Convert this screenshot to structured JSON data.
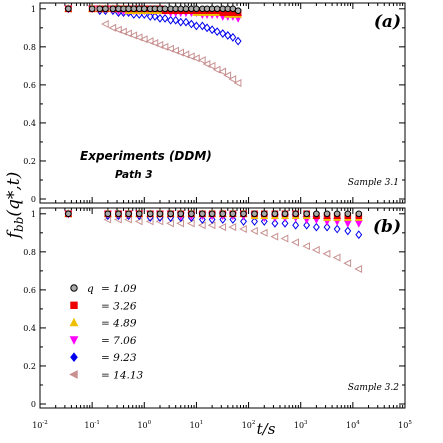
{
  "chart_data": {
    "type": "scatter",
    "ylabel": "f_bb(q*,t)",
    "xlabel": "t/s",
    "x_scale": "log",
    "x_ticks": [
      "10^-2",
      "10^-1",
      "10^0",
      "10^1",
      "10^2",
      "10^3",
      "10^4",
      "10^5"
    ],
    "legend_q_symbol": "q",
    "panels": [
      {
        "letter": "(a)",
        "sample": "Sample 3.1",
        "annotation_line1": "Experiments (DDM)",
        "annotation_line2": "Path 3",
        "xlim": [
          0.01,
          100000
        ],
        "ylim": [
          0,
          1.02
        ],
        "y_ticks": [
          "0",
          "0.2",
          "0.4",
          "0.6",
          "0.8",
          "1"
        ],
        "series": [
          {
            "name": "1.09",
            "marker": "circle",
            "color": "#000000",
            "fill": "#aaaaaa",
            "x": [
              0.035,
              0.1,
              0.14,
              0.18,
              0.25,
              0.32,
              0.4,
              0.5,
              0.63,
              0.8,
              1.0,
              1.3,
              1.6,
              2.0,
              2.5,
              3.2,
              4.0,
              5.0,
              6.3,
              8,
              10,
              13,
              16,
              20,
              25,
              32,
              40,
              50,
              63
            ],
            "y": [
              1.0,
              1.0,
              1.0,
              1.0,
              1.0,
              1.0,
              1.0,
              1.0,
              1.0,
              1.0,
              1.0,
              1.0,
              1.0,
              1.0,
              1.0,
              1.0,
              1.0,
              1.0,
              1.0,
              1.0,
              1.0,
              1.0,
              1.0,
              1.0,
              1.0,
              1.0,
              1.0,
              1.0,
              0.99
            ]
          },
          {
            "name": "3.26",
            "marker": "square",
            "color": "#ee0000",
            "fill": "#ee0000",
            "x": [
              0.035,
              0.1,
              0.14,
              0.18,
              0.25,
              0.32,
              0.4,
              0.5,
              0.63,
              0.8,
              1.0,
              1.3,
              1.6,
              2.0,
              2.5,
              3.2,
              4.0,
              5.0,
              6.3,
              8,
              10,
              13,
              16,
              20,
              25,
              32,
              40,
              50,
              63
            ],
            "y": [
              1.0,
              1.0,
              1.0,
              1.0,
              1.0,
              1.0,
              1.0,
              1.0,
              1.0,
              1.0,
              1.0,
              1.0,
              1.0,
              1.0,
              0.99,
              0.99,
              0.99,
              0.99,
              0.99,
              0.99,
              0.99,
              0.99,
              0.99,
              0.99,
              0.99,
              0.98,
              0.98,
              0.98,
              0.98
            ]
          },
          {
            "name": "4.89",
            "marker": "triangle-up",
            "color": "#f0c000",
            "fill": "#f0c000",
            "x": [
              0.035,
              0.1,
              0.14,
              0.18,
              0.25,
              0.32,
              0.4,
              0.5,
              0.63,
              0.8,
              1.0,
              1.3,
              1.6,
              2.0,
              2.5,
              3.2,
              4.0,
              5.0,
              6.3,
              8,
              10,
              13,
              16,
              20,
              25,
              32,
              40,
              50,
              63
            ],
            "y": [
              1.0,
              1.0,
              1.0,
              1.0,
              1.0,
              1.0,
              1.0,
              0.99,
              0.99,
              0.99,
              0.99,
              0.99,
              0.99,
              0.99,
              0.99,
              0.99,
              0.99,
              0.99,
              0.99,
              0.99,
              0.98,
              0.98,
              0.98,
              0.98,
              0.98,
              0.98,
              0.97,
              0.97,
              0.97
            ]
          },
          {
            "name": "7.06",
            "marker": "triangle-down",
            "color": "#ff00ff",
            "fill": "#ff00ff",
            "x": [
              0.035,
              0.1,
              0.14,
              0.18,
              0.25,
              0.32,
              0.4,
              0.5,
              0.63,
              0.8,
              1.0,
              1.3,
              1.6,
              2.0,
              2.5,
              3.2,
              4.0,
              5.0,
              6.3,
              8,
              10,
              13,
              16,
              20,
              25,
              32,
              40,
              50,
              63
            ],
            "y": [
              1.0,
              1.0,
              1.0,
              1.0,
              1.0,
              0.99,
              0.99,
              0.99,
              0.99,
              0.99,
              0.99,
              0.99,
              0.99,
              0.99,
              0.99,
              0.98,
              0.98,
              0.98,
              0.98,
              0.98,
              0.98,
              0.97,
              0.97,
              0.97,
              0.97,
              0.96,
              0.96,
              0.96,
              0.95
            ]
          },
          {
            "name": "9.23",
            "marker": "diamond",
            "color": "#0000ee",
            "fill": "none",
            "x": [
              0.035,
              0.14,
              0.18,
              0.25,
              0.32,
              0.4,
              0.5,
              0.63,
              0.8,
              1.0,
              1.3,
              1.6,
              2.0,
              2.5,
              3.2,
              4.0,
              5.0,
              6.3,
              8,
              10,
              13,
              16,
              20,
              25,
              32,
              40,
              50,
              63
            ],
            "y": [
              1.0,
              0.99,
              0.99,
              0.99,
              0.98,
              0.98,
              0.98,
              0.97,
              0.97,
              0.97,
              0.96,
              0.96,
              0.95,
              0.95,
              0.94,
              0.94,
              0.93,
              0.93,
              0.92,
              0.91,
              0.91,
              0.9,
              0.89,
              0.88,
              0.87,
              0.86,
              0.85,
              0.83
            ]
          },
          {
            "name": "14.13",
            "marker": "triangle-left",
            "color": "#c89090",
            "fill": "none",
            "x": [
              0.035,
              0.18,
              0.25,
              0.32,
              0.4,
              0.5,
              0.63,
              0.8,
              1.0,
              1.3,
              1.6,
              2.0,
              2.5,
              3.2,
              4.0,
              5.0,
              6.3,
              8,
              10,
              13,
              16,
              20,
              25,
              32,
              40,
              50,
              63
            ],
            "y": [
              1.0,
              0.92,
              0.9,
              0.89,
              0.88,
              0.87,
              0.86,
              0.85,
              0.84,
              0.83,
              0.82,
              0.81,
              0.8,
              0.79,
              0.78,
              0.77,
              0.76,
              0.75,
              0.74,
              0.73,
              0.71,
              0.7,
              0.68,
              0.67,
              0.65,
              0.63,
              0.61
            ]
          }
        ]
      },
      {
        "letter": "(b)",
        "sample": "Sample 3.2",
        "xlim": [
          0.01,
          100000
        ],
        "ylim": [
          0,
          1.02
        ],
        "y_ticks": [
          "0",
          "0.2",
          "0.4",
          "0.6",
          "0.8",
          "1"
        ],
        "series": [
          {
            "name": "1.09",
            "marker": "circle",
            "color": "#000000",
            "fill": "#aaaaaa",
            "x": [
              0.035,
              0.2,
              0.32,
              0.5,
              0.8,
              1.3,
              2.0,
              3.2,
              5.0,
              8,
              13,
              20,
              32,
              50,
              80,
              130,
              200,
              320,
              500,
              800,
              1300,
              2000,
              3200,
              5000,
              8000,
              13000
            ],
            "y": [
              1.0,
              1.0,
              1.0,
              1.0,
              1.0,
              1.0,
              1.0,
              1.0,
              1.0,
              1.0,
              1.0,
              1.0,
              1.0,
              1.0,
              1.0,
              1.0,
              1.0,
              1.0,
              1.0,
              1.0,
              1.0,
              1.0,
              1.0,
              1.0,
              1.0,
              1.0
            ]
          },
          {
            "name": "3.26",
            "marker": "square",
            "color": "#ee0000",
            "fill": "#ee0000",
            "x": [
              0.035,
              0.2,
              0.32,
              0.5,
              0.8,
              1.3,
              2.0,
              3.2,
              5.0,
              8,
              13,
              20,
              32,
              50,
              80,
              130,
              200,
              320,
              500,
              800,
              1300,
              2000,
              3200,
              5000,
              8000,
              13000
            ],
            "y": [
              1.0,
              1.0,
              1.0,
              1.0,
              1.0,
              1.0,
              1.0,
              1.0,
              1.0,
              1.0,
              1.0,
              1.0,
              1.0,
              1.0,
              1.0,
              1.0,
              1.0,
              1.0,
              1.0,
              1.0,
              1.0,
              0.99,
              0.99,
              0.99,
              0.99,
              0.99
            ]
          },
          {
            "name": "4.89",
            "marker": "triangle-up",
            "color": "#f0c000",
            "fill": "#f0c000",
            "x": [
              0.035,
              0.2,
              0.32,
              0.5,
              0.8,
              1.3,
              2.0,
              3.2,
              5.0,
              8,
              13,
              20,
              32,
              50,
              80,
              130,
              200,
              320,
              500,
              800,
              1300,
              2000,
              3200,
              5000,
              8000,
              13000
            ],
            "y": [
              1.0,
              1.0,
              1.0,
              1.0,
              1.0,
              1.0,
              1.0,
              1.0,
              1.0,
              1.0,
              1.0,
              1.0,
              1.0,
              1.0,
              1.0,
              0.99,
              0.99,
              0.99,
              0.99,
              0.99,
              0.99,
              0.99,
              0.98,
              0.98,
              0.98,
              0.98
            ]
          },
          {
            "name": "7.06",
            "marker": "triangle-down",
            "color": "#ff00ff",
            "fill": "#ff00ff",
            "x": [
              0.035,
              0.2,
              0.32,
              0.5,
              0.8,
              1.3,
              2.0,
              3.2,
              5.0,
              8,
              13,
              20,
              32,
              50,
              80,
              130,
              200,
              320,
              500,
              800,
              1300,
              2000,
              3200,
              5000,
              8000,
              13000
            ],
            "y": [
              1.0,
              1.0,
              1.0,
              1.0,
              1.0,
              1.0,
              1.0,
              1.0,
              0.99,
              0.99,
              0.99,
              0.99,
              0.99,
              0.99,
              0.99,
              0.99,
              0.98,
              0.98,
              0.98,
              0.98,
              0.97,
              0.97,
              0.96,
              0.96,
              0.95,
              0.95
            ]
          },
          {
            "name": "9.23",
            "marker": "diamond",
            "color": "#0000ee",
            "fill": "none",
            "x": [
              0.035,
              0.2,
              0.32,
              0.5,
              0.8,
              1.3,
              2.0,
              3.2,
              5.0,
              8,
              13,
              20,
              32,
              50,
              80,
              130,
              200,
              320,
              500,
              800,
              1300,
              2000,
              3200,
              5000,
              8000,
              13000
            ],
            "y": [
              1.0,
              0.99,
              0.99,
              0.99,
              0.99,
              0.98,
              0.98,
              0.98,
              0.98,
              0.98,
              0.97,
              0.97,
              0.97,
              0.97,
              0.96,
              0.96,
              0.96,
              0.95,
              0.95,
              0.94,
              0.94,
              0.93,
              0.93,
              0.92,
              0.91,
              0.89
            ]
          },
          {
            "name": "14.13",
            "marker": "triangle-left",
            "color": "#c89090",
            "fill": "none",
            "x": [
              0.035,
              0.2,
              0.32,
              0.5,
              0.8,
              1.3,
              2.0,
              3.2,
              5.0,
              8,
              13,
              20,
              32,
              50,
              80,
              130,
              200,
              320,
              500,
              800,
              1300,
              2000,
              3200,
              5000,
              8000,
              13000
            ],
            "y": [
              1.0,
              0.97,
              0.97,
              0.97,
              0.96,
              0.96,
              0.96,
              0.95,
              0.95,
              0.95,
              0.94,
              0.94,
              0.93,
              0.93,
              0.92,
              0.91,
              0.9,
              0.88,
              0.87,
              0.85,
              0.83,
              0.81,
              0.79,
              0.77,
              0.74,
              0.71
            ]
          }
        ],
        "legend": {
          "placement": "lower-left",
          "entries": [
            {
              "marker": "circle",
              "color": "#000000",
              "fill": "#aaaaaa",
              "prefix": "q",
              "label": "= 1.09"
            },
            {
              "marker": "square",
              "color": "#ee0000",
              "fill": "#ee0000",
              "prefix": "",
              "label": "= 3.26"
            },
            {
              "marker": "triangle-up",
              "color": "#f0c000",
              "fill": "#f0c000",
              "prefix": "",
              "label": "= 4.89"
            },
            {
              "marker": "triangle-down",
              "color": "#ff00ff",
              "fill": "#ff00ff",
              "prefix": "",
              "label": "= 7.06"
            },
            {
              "marker": "diamond",
              "color": "#0000ee",
              "fill": "#0000ee",
              "prefix": "",
              "label": "= 9.23"
            },
            {
              "marker": "triangle-left",
              "color": "#c89090",
              "fill": "#c89090",
              "prefix": "",
              "label": "= 14.13"
            }
          ]
        }
      }
    ]
  }
}
